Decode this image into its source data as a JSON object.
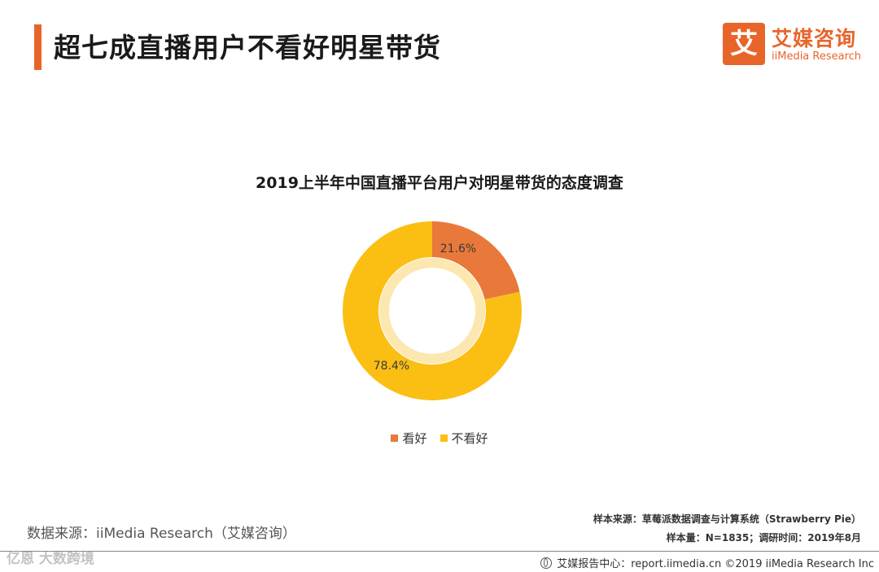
{
  "header": {
    "title": "超七成直播用户不看好明星带货",
    "logo_mark": "艾",
    "logo_cn": "艾媒咨询",
    "logo_en": "iiMedia Research"
  },
  "chart_data": {
    "type": "pie",
    "title": "2019上半年中国直播平台用户对明星带货的态度调查",
    "categories": [
      "看好",
      "不看好"
    ],
    "values": [
      21.6,
      78.4
    ],
    "unit": "%",
    "data_labels": [
      "21.6%",
      "78.4%"
    ],
    "colors": [
      "#e8793a",
      "#fbbf14"
    ],
    "legend_position": "bottom"
  },
  "footer": {
    "source": "数据来源：iiMedia Research（艾媒咨询）",
    "sample_source": "样本来源：草莓派数据调查与计算系统（Strawberry Pie）",
    "sample_size": "样本量：N=1835；调研时间：2019年8月",
    "report_center": "艾媒报告中心：report.iimedia.cn  ©2019  iiMedia Research Inc",
    "watermark": "亿恩 大数跨境"
  }
}
